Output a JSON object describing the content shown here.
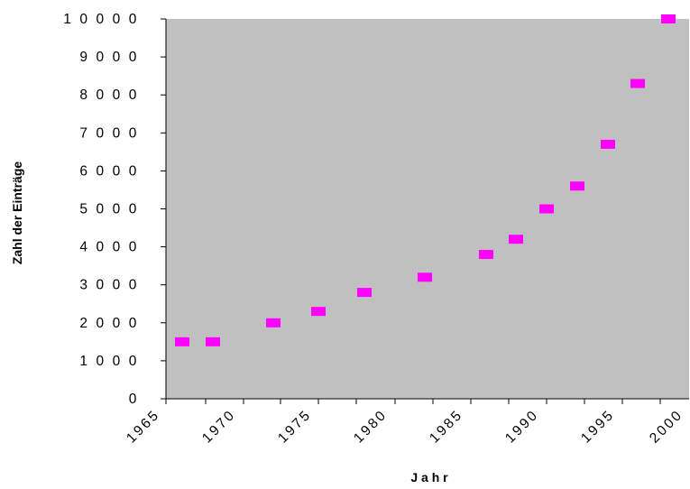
{
  "chart_data": {
    "type": "scatter",
    "title": "",
    "xlabel": "J a h r",
    "ylabel": "Zahl der Einträge",
    "xlim": [
      1965,
      2003
    ],
    "ylim": [
      0,
      10000
    ],
    "x_ticks": [
      "1965",
      "1970",
      "1975",
      "1980",
      "1985",
      "1990",
      "1995",
      "2000"
    ],
    "y_ticks": [
      "0",
      "1 0 0 0",
      "2 0 0 0",
      "3 0 0 0",
      "4 0 0 0",
      "5 0 0 0",
      "6 0 0 0",
      "7 0 0 0",
      "8 0 0 0",
      "9 0 0 0",
      "1 0 0 0 0"
    ],
    "grid": false,
    "background": "#c0c0c0",
    "marker_color": "#ff00ff",
    "series": [
      {
        "points": [
          {
            "x": 1966,
            "y": 1500
          },
          {
            "x": 1968,
            "y": 1500
          },
          {
            "x": 1972,
            "y": 2000
          },
          {
            "x": 1975,
            "y": 2300
          },
          {
            "x": 1978,
            "y": 2800
          },
          {
            "x": 1982,
            "y": 3200
          },
          {
            "x": 1986,
            "y": 3800
          },
          {
            "x": 1988,
            "y": 4200
          },
          {
            "x": 1990,
            "y": 5000
          },
          {
            "x": 1992,
            "y": 5600
          },
          {
            "x": 1994,
            "y": 6700
          },
          {
            "x": 1996,
            "y": 8300
          },
          {
            "x": 1998,
            "y": 10000
          }
        ]
      }
    ]
  }
}
